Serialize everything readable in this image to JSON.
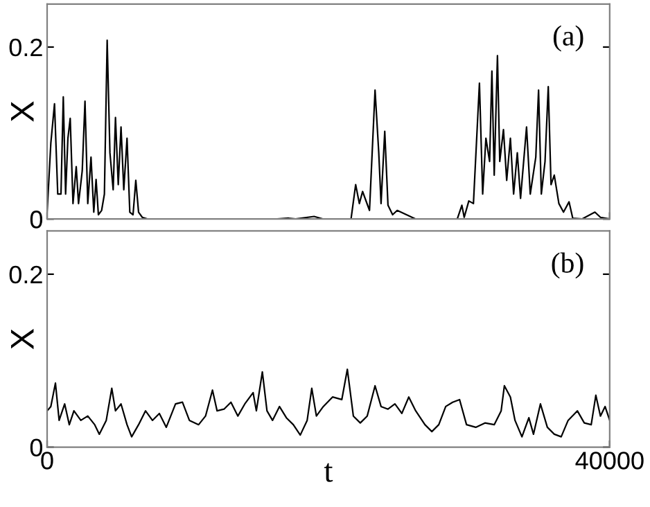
{
  "chart_data": [
    {
      "type": "line",
      "ylabel": "X",
      "annotations": [
        "(a)"
      ],
      "xlim": [
        0,
        40000
      ],
      "ylim": [
        0,
        0.25
      ],
      "xticks": [
        0,
        40000
      ],
      "yticks": [
        0,
        0.2
      ],
      "tick_labels": "y",
      "grid": false,
      "legend": false,
      "line_style": "solid",
      "marker": "none",
      "series": [
        {
          "color": "#000000",
          "x": [
            0,
            263,
            525,
            755,
            985,
            1149,
            1314,
            1478,
            1642,
            1839,
            2069,
            2233,
            2496,
            2693,
            2890,
            3120,
            3317,
            3481,
            3645,
            3875,
            4072,
            4269,
            4466,
            4696,
            4860,
            5057,
            5254,
            5451,
            5681,
            5878,
            6108,
            6305,
            6502,
            6765,
            7159,
            16354,
            17175,
            17668,
            18981,
            19638,
            21609,
            21937,
            22200,
            22430,
            22922,
            23316,
            23580,
            23743,
            24006,
            24236,
            24564,
            24893,
            25550,
            26206,
            29162,
            29490,
            29655,
            29983,
            30311,
            30738,
            30968,
            31198,
            31461,
            31625,
            31789,
            32019,
            32183,
            32446,
            32676,
            32939,
            33168,
            33431,
            33661,
            34088,
            34351,
            34745,
            34942,
            35139,
            35402,
            35632,
            35829,
            36059,
            36387,
            36716,
            37110,
            37372,
            38029,
            38948,
            39342,
            40000
          ],
          "values": [
            0.008,
            0.088,
            0.134,
            0.029,
            0.029,
            0.142,
            0.029,
            0.094,
            0.117,
            0.018,
            0.061,
            0.018,
            0.056,
            0.137,
            0.018,
            0.072,
            0.008,
            0.046,
            0.005,
            0.01,
            0.029,
            0.208,
            0.077,
            0.034,
            0.118,
            0.04,
            0.107,
            0.034,
            0.094,
            0.008,
            0.005,
            0.045,
            0.008,
            0.002,
            0,
            0,
            0.001,
            0,
            0.003,
            0,
            0,
            0.04,
            0.018,
            0.032,
            0.01,
            0.15,
            0.077,
            0.018,
            0.102,
            0.016,
            0.005,
            0.01,
            0.005,
            0,
            0,
            0.016,
            0.002,
            0.021,
            0.018,
            0.158,
            0.029,
            0.094,
            0.067,
            0.172,
            0.051,
            0.19,
            0.067,
            0.104,
            0.045,
            0.094,
            0.029,
            0.077,
            0.024,
            0.107,
            0.029,
            0.072,
            0.15,
            0.029,
            0.067,
            0.154,
            0.04,
            0.051,
            0.018,
            0.008,
            0.02,
            0.001,
            0,
            0.008,
            0.002,
            0
          ]
        }
      ]
    },
    {
      "type": "line",
      "xlabel": "t",
      "ylabel": "X",
      "annotations": [
        "(b)"
      ],
      "xlim": [
        0,
        40000
      ],
      "ylim": [
        0,
        0.25
      ],
      "xticks": [
        0,
        40000
      ],
      "yticks": [
        0,
        0.2
      ],
      "grid": false,
      "legend": false,
      "line_style": "solid",
      "marker": "none",
      "series": [
        {
          "color": "#000000",
          "x": [
            0,
            263,
            591,
            854,
            1248,
            1576,
            1905,
            2397,
            2890,
            3383,
            3711,
            4204,
            4598,
            4860,
            5254,
            5681,
            6010,
            6502,
            6995,
            7488,
            7980,
            8473,
            9130,
            9622,
            10115,
            10772,
            11264,
            11757,
            12085,
            12578,
            13070,
            13563,
            14055,
            14647,
            14877,
            15303,
            15632,
            16026,
            16519,
            17011,
            17504,
            18000,
            18489,
            18817,
            19146,
            19638,
            20295,
            20952,
            21346,
            21773,
            22266,
            22758,
            23316,
            23743,
            24236,
            24729,
            25221,
            25714,
            26206,
            26863,
            27356,
            27848,
            28341,
            28834,
            29326,
            29819,
            30476,
            31132,
            31789,
            32282,
            32512,
            32939,
            33267,
            33760,
            34252,
            34581,
            35074,
            35566,
            36059,
            36551,
            37044,
            37700,
            38193,
            38686,
            39015,
            39342,
            39671,
            40000
          ],
          "values": [
            0.042,
            0.047,
            0.074,
            0.031,
            0.05,
            0.026,
            0.042,
            0.031,
            0.036,
            0.026,
            0.015,
            0.031,
            0.068,
            0.042,
            0.05,
            0.026,
            0.012,
            0.026,
            0.042,
            0.031,
            0.039,
            0.023,
            0.05,
            0.052,
            0.031,
            0.026,
            0.036,
            0.066,
            0.042,
            0.044,
            0.052,
            0.036,
            0.05,
            0.063,
            0.042,
            0.087,
            0.042,
            0.031,
            0.047,
            0.034,
            0.026,
            0.014,
            0.031,
            0.068,
            0.036,
            0.047,
            0.058,
            0.055,
            0.09,
            0.036,
            0.028,
            0.036,
            0.071,
            0.047,
            0.044,
            0.05,
            0.039,
            0.058,
            0.042,
            0.026,
            0.018,
            0.026,
            0.047,
            0.052,
            0.055,
            0.026,
            0.023,
            0.028,
            0.026,
            0.042,
            0.071,
            0.058,
            0.031,
            0.012,
            0.034,
            0.015,
            0.05,
            0.023,
            0.015,
            0.012,
            0.031,
            0.042,
            0.028,
            0.026,
            0.06,
            0.036,
            0.047,
            0.031
          ]
        }
      ]
    }
  ]
}
